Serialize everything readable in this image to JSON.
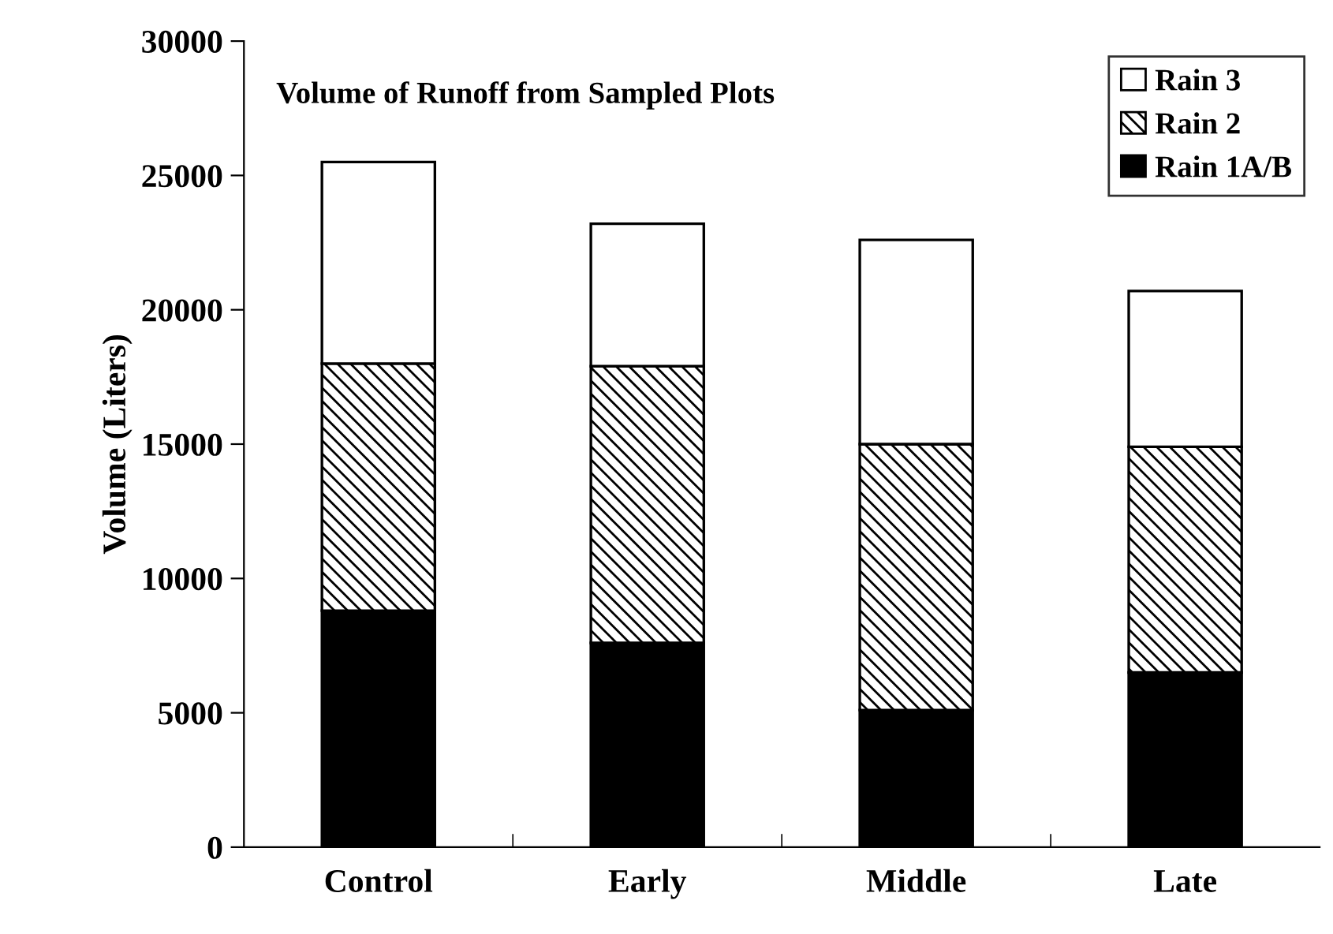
{
  "chart_data": {
    "type": "bar",
    "stacked": true,
    "title": "Volume of Runoff from Sampled Plots",
    "ylabel": "Volume (Liters)",
    "categories": [
      "Control",
      "Early",
      "Middle",
      "Late"
    ],
    "series": [
      {
        "name": "Rain 1A/B",
        "color": "#000000",
        "values": [
          8800,
          7600,
          5100,
          6500
        ]
      },
      {
        "name": "Rain 2",
        "color": "#000000",
        "values": [
          9200,
          10300,
          9900,
          8400
        ]
      },
      {
        "name": "Rain 3",
        "color": "#ffffff",
        "values": [
          7500,
          5300,
          7600,
          5800
        ]
      }
    ],
    "ylim": [
      0,
      30000
    ],
    "yticks": [
      0,
      5000,
      10000,
      15000,
      20000,
      25000,
      30000
    ],
    "grid": false,
    "legend": "top right"
  }
}
